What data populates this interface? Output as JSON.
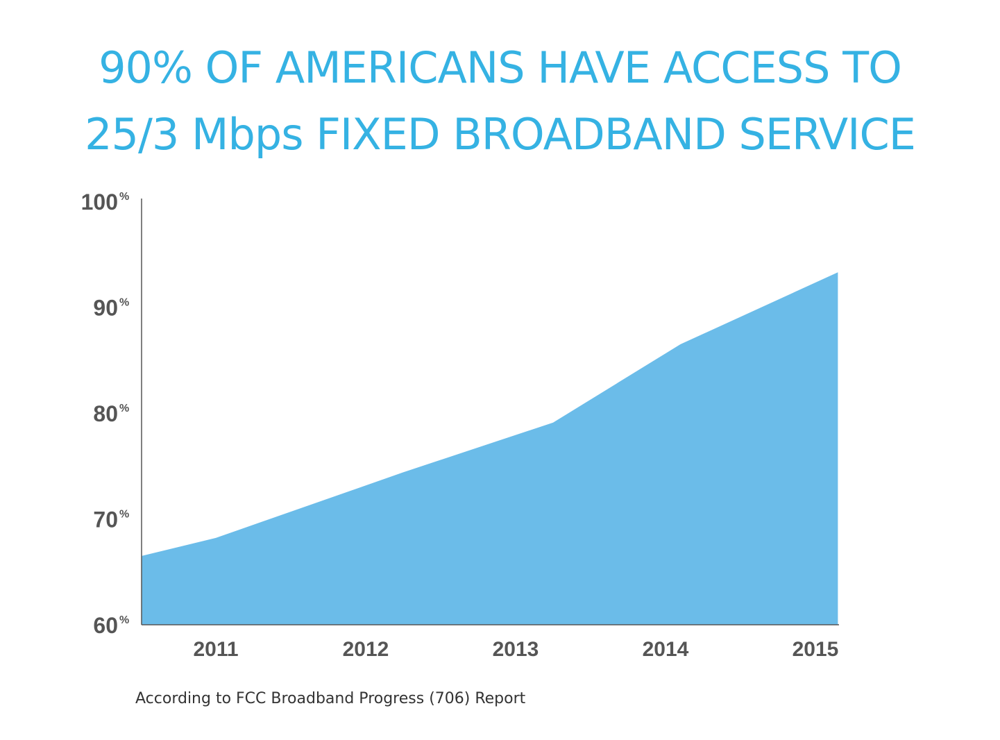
{
  "title": {
    "line1": "90% OF AMERICANS HAVE ACCESS TO",
    "line2": "25/3 Mbps FIXED BROADBAND SERVICE"
  },
  "source": "According to FCC Broadband Progress (706) Report",
  "colors": {
    "title": "#35b2e3",
    "area": "#6bbce9",
    "axis": "#555555"
  },
  "chart_data": {
    "type": "area",
    "title": "90% OF AMERICANS HAVE ACCESS TO 25/3 Mbps FIXED BROADBAND SERVICE",
    "xlabel": "",
    "ylabel": "",
    "ylim": [
      60,
      100
    ],
    "yticks": [
      {
        "value": 60,
        "label": "60",
        "suffix": "%"
      },
      {
        "value": 70,
        "label": "70",
        "suffix": "%"
      },
      {
        "value": 80,
        "label": "80",
        "suffix": "%"
      },
      {
        "value": 90,
        "label": "90",
        "suffix": "%"
      },
      {
        "value": 100,
        "label": "100",
        "suffix": "%"
      }
    ],
    "xlim": [
      2010.5,
      2015.15
    ],
    "xticks": [
      2011,
      2012,
      2013,
      2014,
      2015
    ],
    "xtick_labels": [
      "2011",
      "2012",
      "2013",
      "2014",
      "2015"
    ],
    "series": [
      {
        "x": [
          2010.5,
          2011,
          2012.25,
          2013.25,
          2014.1,
          2015.15
        ],
        "values": [
          66.5,
          68.2,
          74.4,
          79.1,
          86.5,
          93.3
        ]
      }
    ],
    "grid": false,
    "legend": "none"
  }
}
